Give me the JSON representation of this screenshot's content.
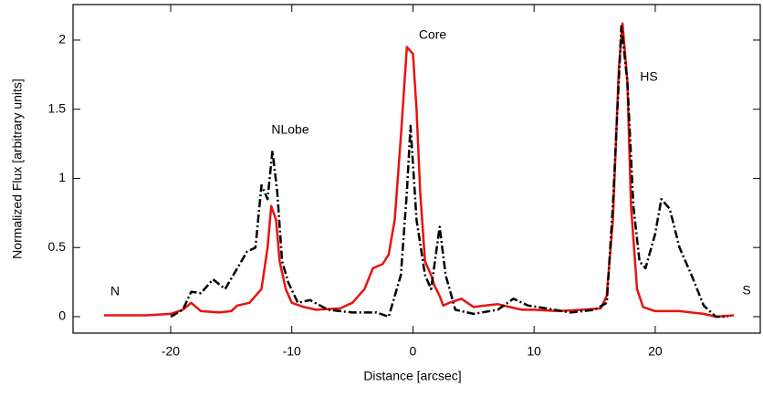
{
  "chart_data": {
    "type": "line",
    "x_label": "Distance [arcsec]",
    "y_label": "Normalized Flux [arbitrary units]",
    "annotations": [
      "N",
      "NLobe",
      "Core",
      "HS",
      "S"
    ],
    "xlim": [
      -28.06,
      28.67
    ],
    "ylim": [
      -0.119,
      2.257
    ],
    "xticks": [
      -20,
      -10,
      0,
      10,
      20
    ],
    "yticks": [
      0,
      0.5,
      1,
      1.5,
      2
    ],
    "grid": false,
    "series": [
      {
        "color": "#e8120c",
        "linestyle": "solid",
        "x": [
          -25.5,
          -24,
          -22,
          -20,
          -19,
          -18.3,
          -17.5,
          -16,
          -15,
          -14.5,
          -13.5,
          -12.5,
          -12,
          -11.7,
          -11.3,
          -11,
          -10.5,
          -10,
          -9,
          -8,
          -6,
          -5,
          -4,
          -3.3,
          -2.5,
          -2,
          -1.5,
          -1,
          -0.5,
          0,
          0.3,
          0.6,
          1,
          1.5,
          1.8,
          2.2,
          2.5,
          3,
          4,
          5,
          6,
          7,
          8,
          9,
          10,
          12,
          14,
          15.5,
          16,
          16.5,
          17,
          17.3,
          17.7,
          18,
          18.5,
          19,
          20,
          22,
          23,
          24,
          25,
          26.5
        ],
        "values": [
          0.01,
          0.01,
          0.01,
          0.02,
          0.05,
          0.1,
          0.04,
          0.03,
          0.04,
          0.08,
          0.1,
          0.2,
          0.5,
          0.8,
          0.7,
          0.4,
          0.2,
          0.1,
          0.07,
          0.05,
          0.06,
          0.1,
          0.2,
          0.35,
          0.38,
          0.45,
          0.7,
          1.3,
          1.95,
          1.9,
          1.5,
          0.9,
          0.4,
          0.3,
          0.22,
          0.15,
          0.08,
          0.1,
          0.13,
          0.07,
          0.08,
          0.09,
          0.07,
          0.05,
          0.05,
          0.04,
          0.05,
          0.06,
          0.15,
          0.7,
          1.8,
          2.12,
          1.7,
          0.8,
          0.2,
          0.07,
          0.04,
          0.04,
          0.03,
          0.02,
          0,
          0.01
        ]
      },
      {
        "color": "#000000",
        "linestyle": "dash-dot",
        "x": [
          -20,
          -19,
          -18.3,
          -17.5,
          -16.5,
          -15.5,
          -14.5,
          -13.7,
          -13,
          -12.5,
          -12,
          -11.6,
          -11.2,
          -10.8,
          -10.3,
          -9.5,
          -8.5,
          -7,
          -5,
          -3,
          -2,
          -1,
          -0.5,
          -0.2,
          0.3,
          1,
          1.5,
          2.2,
          2.7,
          3.5,
          5,
          7,
          8.3,
          9.5,
          11,
          13,
          15,
          16,
          16.5,
          17.2,
          17.7,
          18.2,
          18.7,
          19.2,
          20,
          20.5,
          21.2,
          22,
          23,
          24,
          25,
          26
        ],
        "values": [
          0,
          0.05,
          0.18,
          0.17,
          0.27,
          0.2,
          0.35,
          0.47,
          0.5,
          0.95,
          0.85,
          1.2,
          0.9,
          0.4,
          0.25,
          0.1,
          0.12,
          0.05,
          0.03,
          0.03,
          0,
          0.3,
          0.9,
          1.38,
          0.7,
          0.3,
          0.2,
          0.65,
          0.3,
          0.05,
          0.02,
          0.05,
          0.13,
          0.08,
          0.06,
          0.03,
          0.05,
          0.1,
          0.8,
          2.1,
          1.7,
          0.8,
          0.4,
          0.35,
          0.6,
          0.85,
          0.78,
          0.5,
          0.3,
          0.08,
          0,
          0
        ]
      }
    ]
  }
}
